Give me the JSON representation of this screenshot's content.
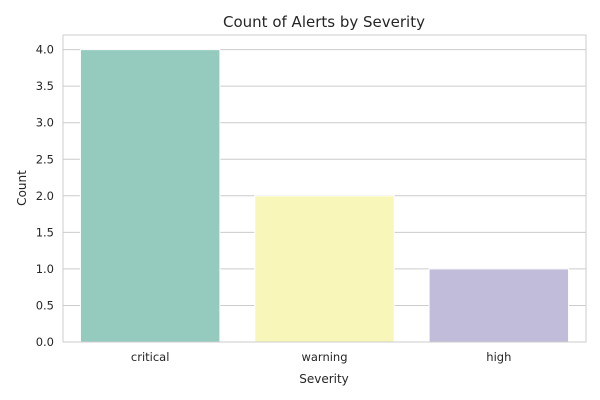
{
  "chart_data": {
    "type": "bar",
    "title": "Count of Alerts by Severity",
    "xlabel": "Severity",
    "ylabel": "Count",
    "categories": [
      "critical",
      "warning",
      "high"
    ],
    "values": [
      4,
      2,
      1
    ],
    "ylim": [
      0,
      4.2
    ],
    "yticks": [
      "0.0",
      "0.5",
      "1.0",
      "1.5",
      "2.0",
      "2.5",
      "3.0",
      "3.5",
      "4.0"
    ],
    "grid": true,
    "colors": [
      "#95cbbf",
      "#f8f7b9",
      "#c0bcd9"
    ]
  }
}
